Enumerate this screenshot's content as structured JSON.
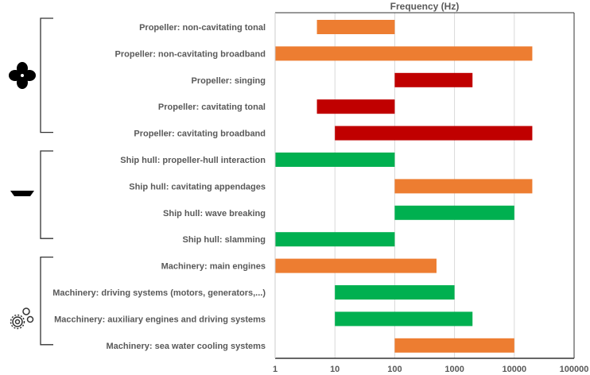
{
  "chart_data": {
    "type": "bar",
    "orientation": "horizontal-floating",
    "title": "Frequency (Hz)",
    "xscale": "log",
    "xlim": [
      1,
      100000
    ],
    "xticks": [
      "1",
      "10",
      "100",
      "1000",
      "10000",
      "100000"
    ],
    "grid": "vertical",
    "colors": {
      "orange": "#ED7D31",
      "red": "#C00000",
      "green": "#00B050"
    },
    "categories": [
      "Propeller: non-cavitating tonal",
      "Propeller: non-cavitating broadband",
      "Propeller: singing",
      "Propeller: cavitating tonal",
      "Propeller: cavitating broadband",
      "Ship hull: propeller-hull interaction",
      "Ship hull: cavitating appendages",
      "Ship hull: wave breaking",
      "Ship hull: slamming",
      "Machinery: main engines",
      "Machinery: driving systems (motors, generators,...)",
      "Macchinery: auxiliary engines and driving systems",
      "Machinery: sea water cooling systems"
    ],
    "ranges": [
      [
        5,
        100
      ],
      [
        1,
        20000
      ],
      [
        100,
        2000
      ],
      [
        5,
        100
      ],
      [
        10,
        20000
      ],
      [
        1,
        100
      ],
      [
        100,
        20000
      ],
      [
        100,
        10000
      ],
      [
        1,
        100
      ],
      [
        1,
        500
      ],
      [
        10,
        1000
      ],
      [
        10,
        2000
      ],
      [
        100,
        10000
      ]
    ],
    "bar_colors": [
      "#ED7D31",
      "#ED7D31",
      "#C00000",
      "#C00000",
      "#C00000",
      "#00B050",
      "#ED7D31",
      "#00B050",
      "#00B050",
      "#ED7D31",
      "#00B050",
      "#00B050",
      "#ED7D31"
    ],
    "groups": [
      {
        "icon": "propeller-icon",
        "rows": [
          0,
          4
        ]
      },
      {
        "icon": "ship-icon",
        "rows": [
          5,
          8
        ]
      },
      {
        "icon": "gears-icon",
        "rows": [
          9,
          12
        ]
      }
    ]
  }
}
